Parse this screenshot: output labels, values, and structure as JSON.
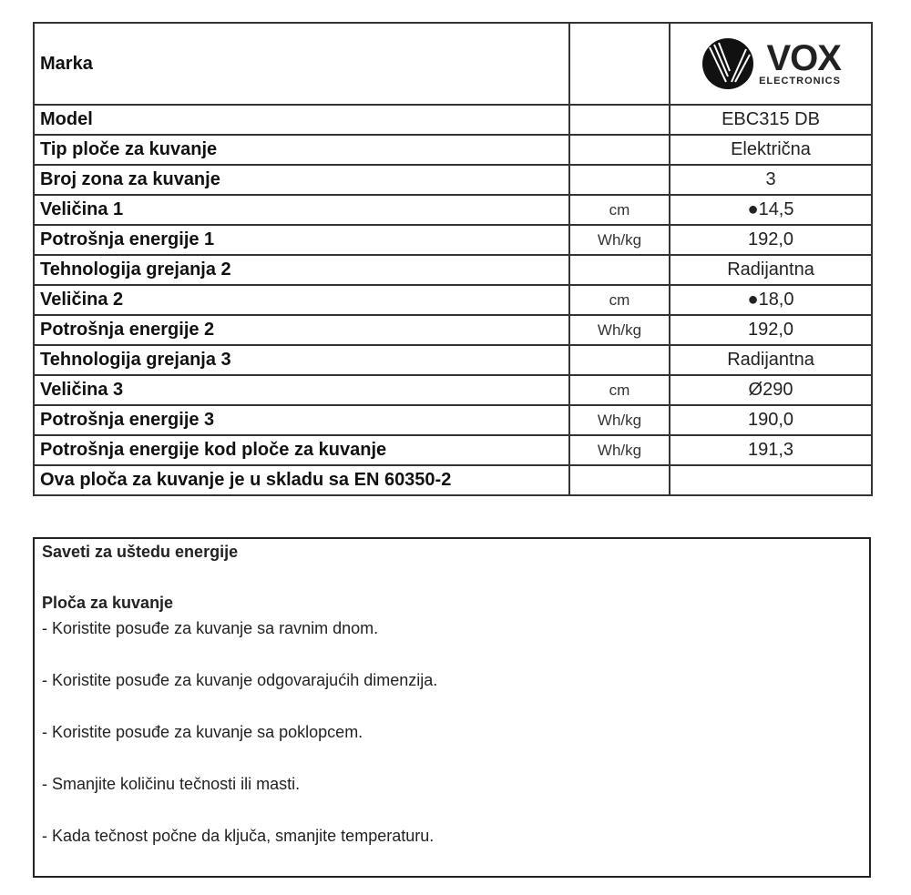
{
  "table": {
    "brand_label": "Marka",
    "logo": {
      "main": "VOX",
      "sub": "ELECTRONICS"
    },
    "rows": [
      {
        "label": "Model",
        "unit": "",
        "value": "EBC315 DB"
      },
      {
        "label": "Tip ploče za kuvanje",
        "unit": "",
        "value": "Električna"
      },
      {
        "label": "Broj zona za kuvanje",
        "unit": "",
        "value": "3"
      },
      {
        "label": "Veličina 1",
        "unit": "cm",
        "value": "●14,5"
      },
      {
        "label": "Potrošnja energije 1",
        "unit": "Wh/kg",
        "value": "192,0"
      },
      {
        "label": "Tehnologija grejanja 2",
        "unit": "",
        "value": "Radijantna"
      },
      {
        "label": "Veličina 2",
        "unit": "cm",
        "value": "●18,0"
      },
      {
        "label": "Potrošnja energije 2",
        "unit": "Wh/kg",
        "value": "192,0"
      },
      {
        "label": "Tehnologija grejanja 3",
        "unit": "",
        "value": "Radijantna"
      },
      {
        "label": "Veličina 3",
        "unit": "cm",
        "value": "Ø290"
      },
      {
        "label": "Potrošnja energije 3",
        "unit": "Wh/kg",
        "value": "190,0"
      },
      {
        "label": "Potrošnja energije kod ploče za kuvanje",
        "unit": "Wh/kg",
        "value": "191,3"
      },
      {
        "label": "Ova ploča za kuvanje je u skladu sa EN 60350-2",
        "unit": "",
        "value": ""
      }
    ]
  },
  "advice": {
    "title": "Saveti za uštedu energije",
    "subtitle": "Ploča za kuvanje",
    "items": [
      "- Koristite posuđe za kuvanje sa ravnim dnom.",
      "- Koristite posuđe za kuvanje odgovarajućih dimenzija.",
      "- Koristite posuđe za kuvanje sa poklopcem.",
      "- Smanjite količinu tečnosti ili masti.",
      "- Kada tečnost počne da ključa, smanjite temperaturu."
    ]
  }
}
